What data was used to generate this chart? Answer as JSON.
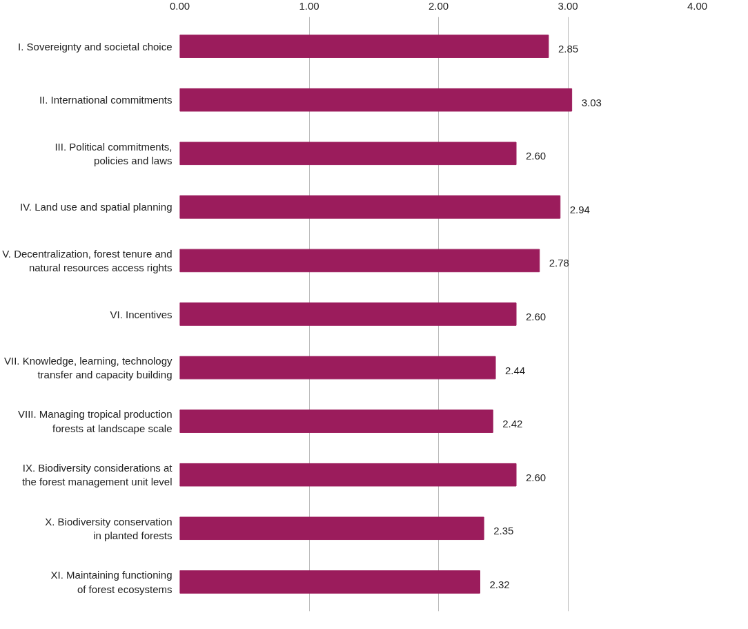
{
  "chart_data": {
    "type": "bar",
    "orientation": "horizontal",
    "categories": [
      "I. Sovereignty and societal choice",
      "II. International commitments",
      "III. Political commitments,\npolicies and laws",
      "IV. Land use and spatial planning",
      "V. Decentralization, forest tenure and\nnatural resources access rights",
      "VI. Incentives",
      "VII. Knowledge, learning, technology\ntransfer and capacity building",
      "VIII. Managing tropical production\nforests at landscape scale",
      "IX. Biodiversity considerations at\nthe forest management unit level",
      "X. Biodiversity conservation\nin planted forests",
      "XI. Maintaining functioning\nof forest ecosystems"
    ],
    "values": [
      2.85,
      3.03,
      2.6,
      2.94,
      2.78,
      2.6,
      2.44,
      2.42,
      2.6,
      2.35,
      2.32
    ],
    "value_labels": [
      "2.85",
      "3.03",
      "2.60",
      "2.94",
      "2.78",
      "2.60",
      "2.44",
      "2.42",
      "2.60",
      "2.35",
      "2.32"
    ],
    "color": "#9b1c5c",
    "xlim": [
      0,
      4
    ],
    "xticks": [
      {
        "value": 0,
        "label": "0.00"
      },
      {
        "value": 1,
        "label": "1.00"
      },
      {
        "value": 2,
        "label": "2.00"
      },
      {
        "value": 3,
        "label": "3.00"
      },
      {
        "value": 4,
        "label": "4.00"
      }
    ],
    "grid": "x"
  }
}
